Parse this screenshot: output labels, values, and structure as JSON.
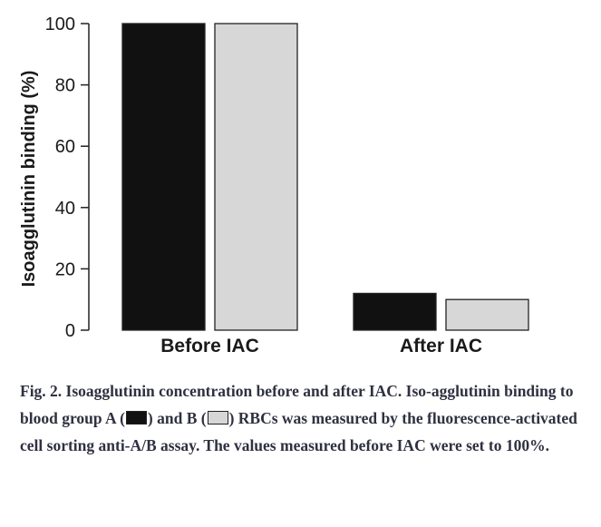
{
  "chart_data": {
    "type": "bar",
    "categories": [
      "Before IAC",
      "After IAC"
    ],
    "series": [
      {
        "values": [
          100,
          12
        ],
        "color": "#111111"
      },
      {
        "values": [
          100,
          10
        ],
        "color": "#d7d7d7"
      }
    ],
    "ylabel": "Isoagglutinin binding (%)",
    "yticks": [
      0,
      20,
      40,
      60,
      80,
      100
    ],
    "ylim": [
      0,
      100
    ],
    "grid": false
  },
  "caption": {
    "part1": "Fig. 2. Isoagglutinin concentration before and after IAC. Iso-agglutinin binding to blood group A (",
    "part2": ") and B (",
    "part3": ") RBCs was measured by the fluorescence-activated cell sorting anti-A/B assay. The values measured before IAC were set to 100%."
  }
}
